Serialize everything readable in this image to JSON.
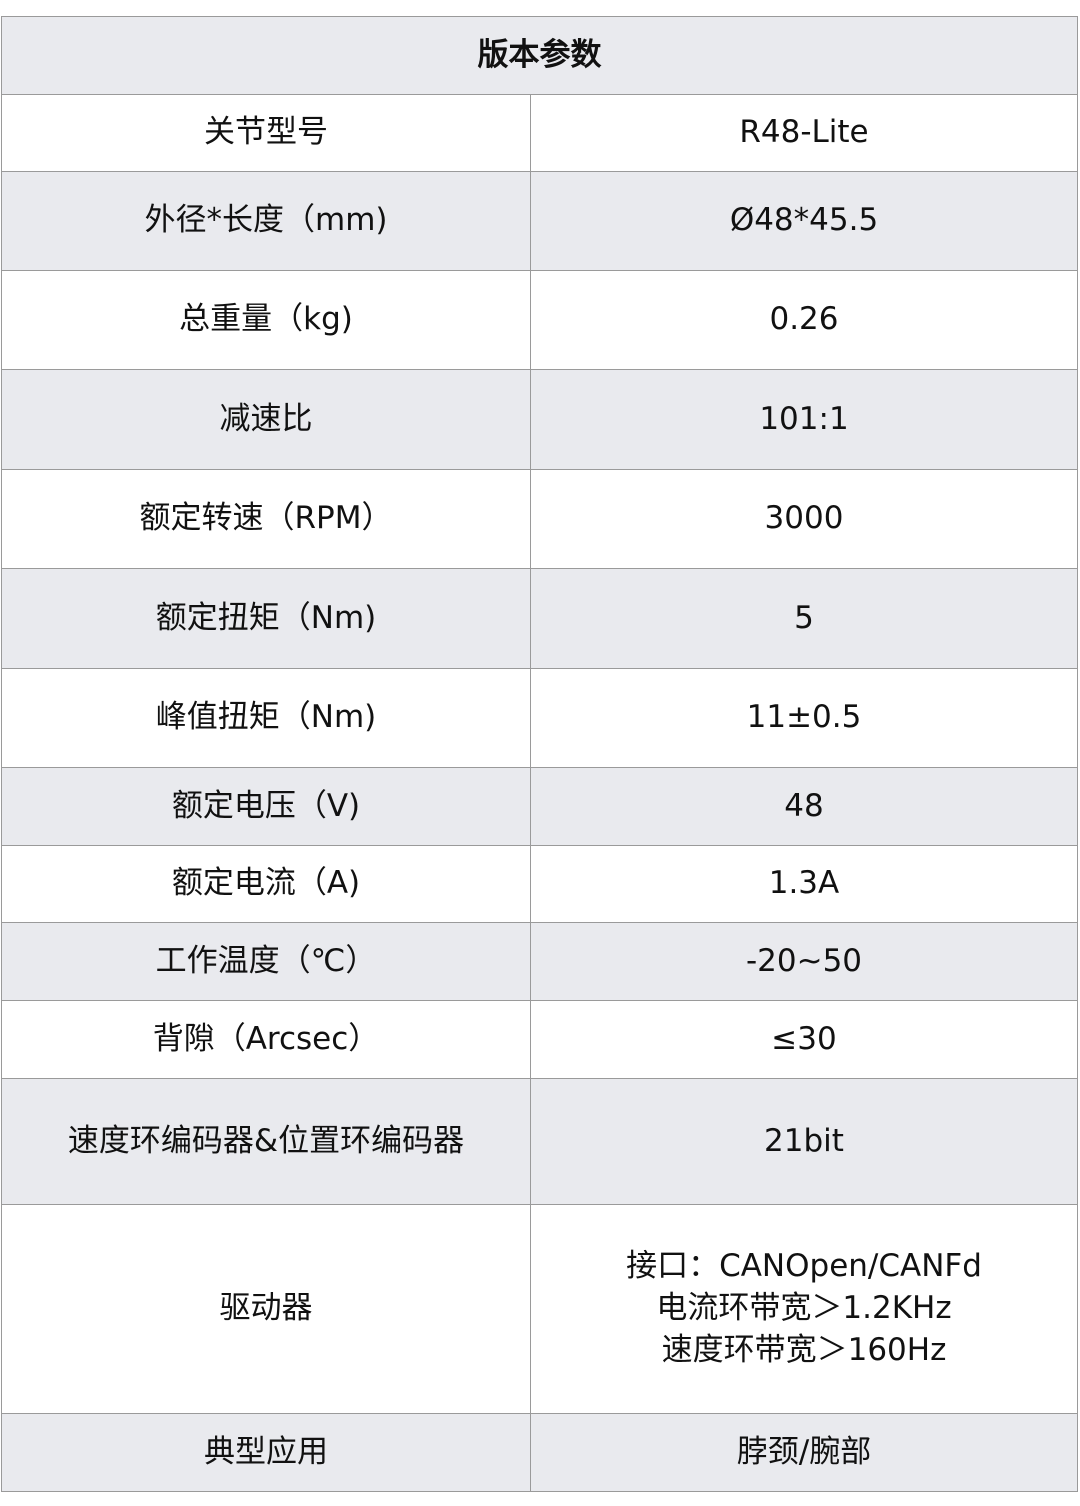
{
  "title": "版本参数",
  "rows": [
    {
      "label": "关节型号",
      "value": [
        "R48-Lite"
      ]
    },
    {
      "label": "外径*长度（mm)",
      "value": [
        "Ø48*45.5"
      ]
    },
    {
      "label": "总重量（kg)",
      "value": [
        "0.26"
      ]
    },
    {
      "label": "减速比",
      "value": [
        "101:1"
      ]
    },
    {
      "label": "额定转速（RPM）",
      "value": [
        "3000"
      ]
    },
    {
      "label": "额定扭矩（Nm)",
      "value": [
        "5"
      ]
    },
    {
      "label": "峰值扭矩（Nm)",
      "value": [
        "11±0.5"
      ]
    },
    {
      "label": "额定电压（V)",
      "value": [
        "48"
      ]
    },
    {
      "label": "额定电流（A)",
      "value": [
        "1.3A"
      ]
    },
    {
      "label": "工作温度（℃）",
      "value": [
        "-20~50"
      ]
    },
    {
      "label": "背隙（Arcsec）",
      "value": [
        "≤30"
      ]
    },
    {
      "label": "速度环编码器&位置环编码器",
      "value": [
        "21bit"
      ]
    },
    {
      "label": "驱动器",
      "value": [
        "接口：CANOpen/CANFd",
        "电流环带宽＞1.2KHz",
        "速度环带宽＞160Hz"
      ]
    },
    {
      "label": "典型应用",
      "value": [
        "脖颈/腕部"
      ]
    }
  ]
}
